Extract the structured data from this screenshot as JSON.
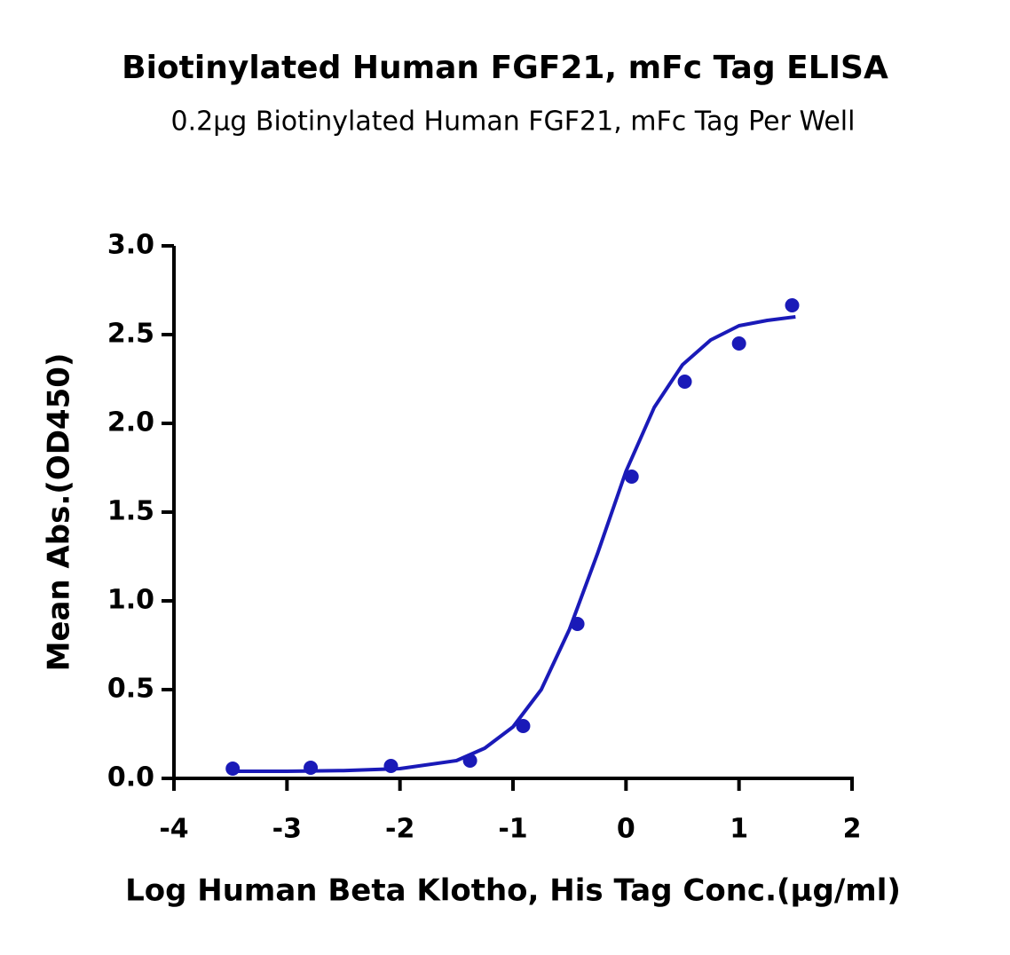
{
  "chart_data": {
    "type": "scatter",
    "title": "Biotinylated Human FGF21, mFc Tag ELISA",
    "subtitle": "0.2μg Biotinylated Human FGF21, mFc Tag Per Well",
    "x_label": "Log Human Beta Klotho, His Tag Conc.(μg/ml)",
    "y_label": "Mean Abs.(OD450)",
    "xlim": [
      -4,
      2
    ],
    "xticks": [
      -4,
      -3,
      -2,
      -1,
      0,
      1,
      2
    ],
    "ylim": [
      0,
      3
    ],
    "yticks": [
      {
        "value": 0,
        "label": "0.0"
      },
      {
        "value": 0.5,
        "label": "0.5"
      },
      {
        "value": 1,
        "label": "1.0"
      },
      {
        "value": 1.5,
        "label": "1.5"
      },
      {
        "value": 2,
        "label": "2.0"
      },
      {
        "value": 2.5,
        "label": "2.5"
      },
      {
        "value": 3,
        "label": "3.0"
      }
    ],
    "color": "#1a1ab8",
    "points": {
      "x": [
        -3.48,
        -2.79,
        -2.08,
        -1.38,
        -0.91,
        -0.43,
        0.05,
        0.52,
        1.0,
        1.47
      ],
      "values": [
        0.055,
        0.06,
        0.07,
        0.1,
        0.295,
        0.87,
        1.7,
        2.235,
        2.45,
        2.665
      ]
    },
    "fit": {
      "x": [
        -3.5,
        -3,
        -2.5,
        -2,
        -1.5,
        -1.25,
        -1,
        -0.75,
        -0.5,
        -0.25,
        0,
        0.25,
        0.5,
        0.75,
        1,
        1.25,
        1.5
      ],
      "values": [
        0.04,
        0.04,
        0.044,
        0.055,
        0.1,
        0.17,
        0.29,
        0.5,
        0.84,
        1.27,
        1.73,
        2.09,
        2.33,
        2.47,
        2.55,
        2.58,
        2.6
      ]
    }
  }
}
